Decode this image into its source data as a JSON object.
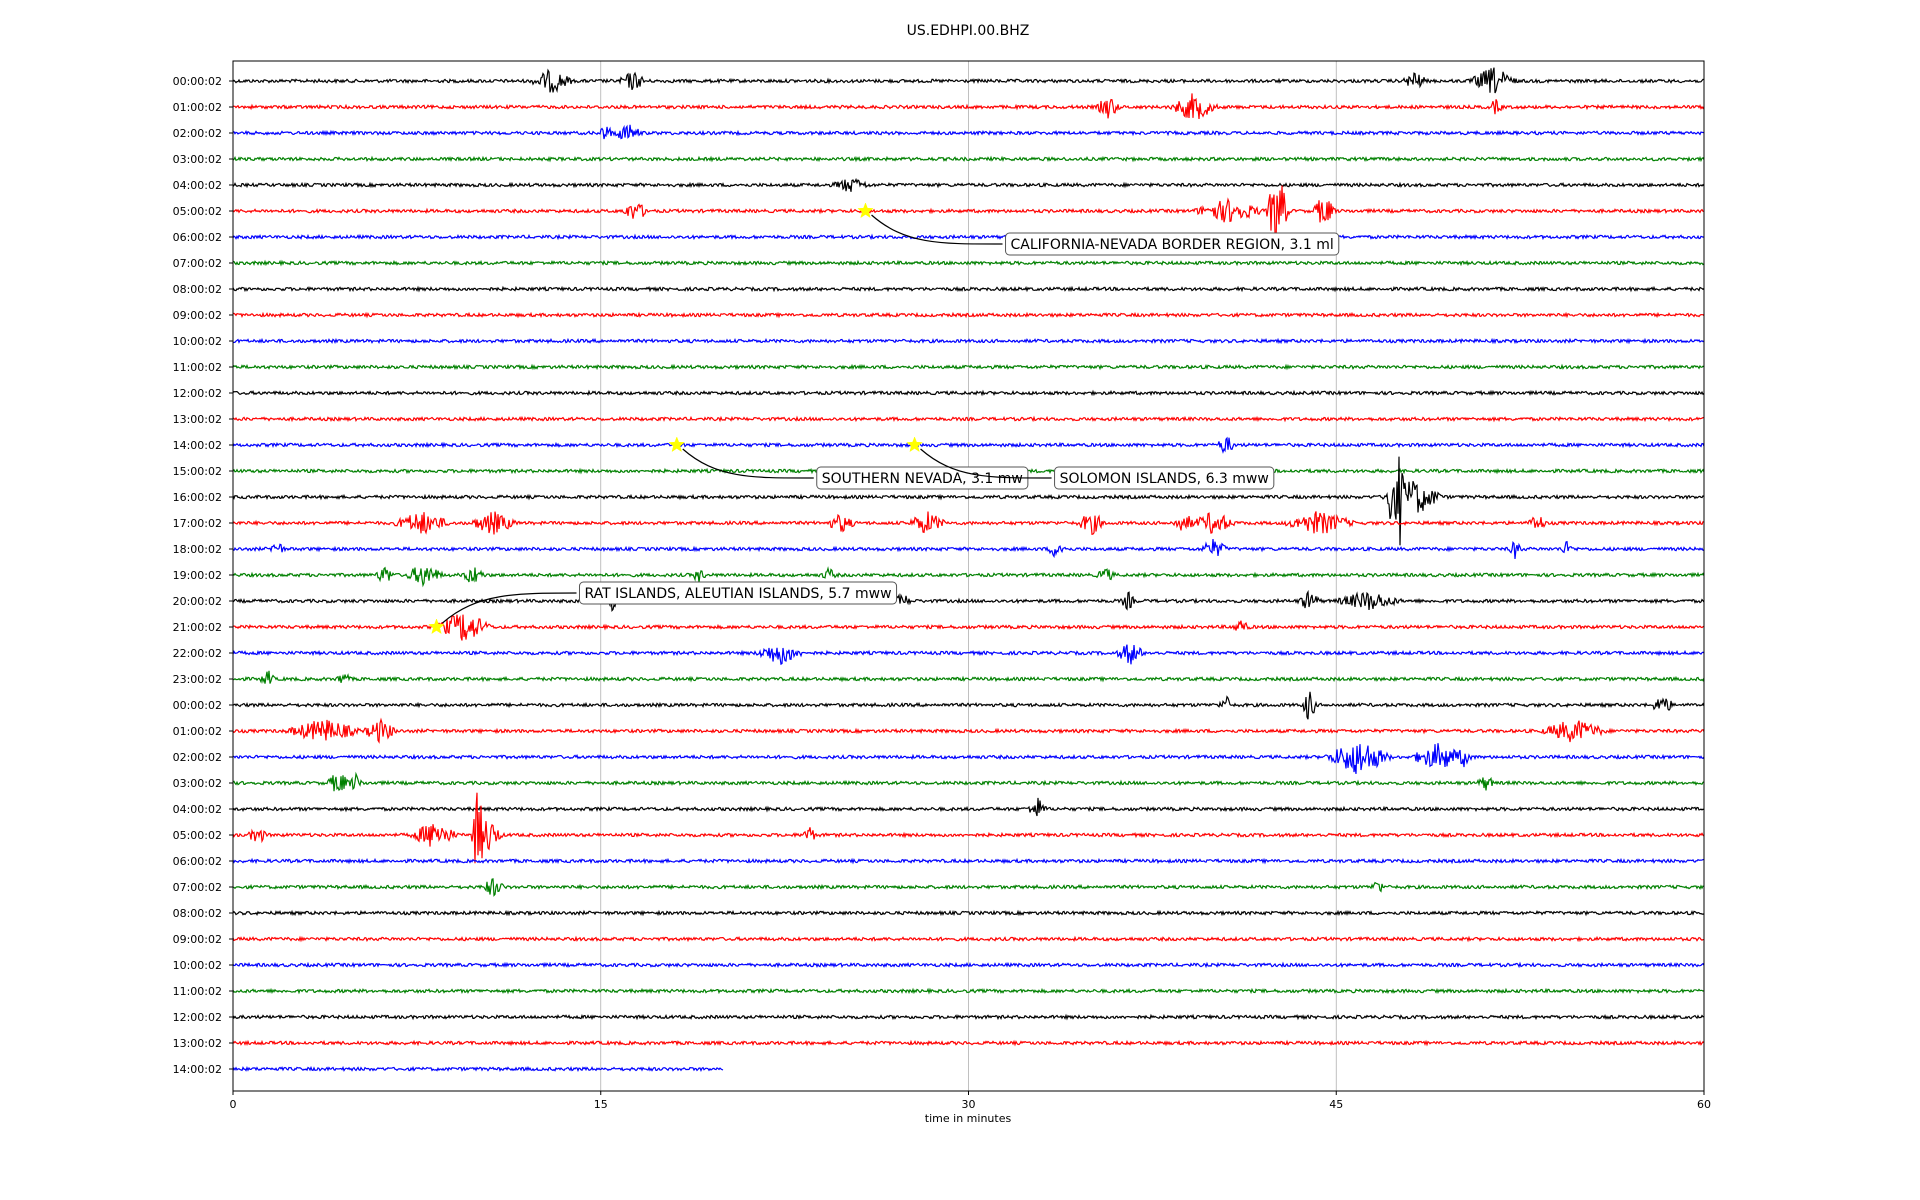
{
  "chart_data": {
    "type": "line",
    "title": "US.EDHPI.00.BHZ",
    "xlabel": "time in minutes",
    "ylabel": "",
    "xlim": [
      0,
      60
    ],
    "xticks": [
      0,
      15,
      30,
      45,
      60
    ],
    "grid": "vertical",
    "line_colors": [
      "#000000",
      "#ff0000",
      "#0000ff",
      "#008000"
    ],
    "marker_color": "#ffff00",
    "rows": [
      {
        "label": "00:00:02",
        "end_minute": 60,
        "bursts": [
          [
            13.0,
            0.9,
            0.5
          ],
          [
            16.3,
            0.6,
            0.4
          ],
          [
            48.2,
            0.5,
            0.4
          ],
          [
            51.4,
            1.0,
            0.6
          ]
        ]
      },
      {
        "label": "01:00:02",
        "end_minute": 60,
        "bursts": [
          [
            35.7,
            0.5,
            0.5
          ],
          [
            39.2,
            1.0,
            0.6
          ],
          [
            51.5,
            0.3,
            0.3
          ]
        ]
      },
      {
        "label": "02:00:02",
        "end_minute": 60,
        "bursts": [
          [
            15.2,
            0.4,
            0.3
          ],
          [
            16.1,
            0.6,
            0.4
          ]
        ]
      },
      {
        "label": "03:00:02",
        "end_minute": 60,
        "bursts": []
      },
      {
        "label": "04:00:02",
        "end_minute": 60,
        "bursts": [
          [
            25.2,
            0.8,
            0.3
          ]
        ]
      },
      {
        "label": "05:00:02",
        "end_minute": 60,
        "bursts": [
          [
            16.4,
            0.6,
            0.4
          ],
          [
            40.6,
            1.5,
            0.5
          ],
          [
            42.6,
            0.5,
            1.8
          ],
          [
            44.5,
            0.5,
            0.7
          ]
        ]
      },
      {
        "label": "06:00:02",
        "end_minute": 60,
        "bursts": []
      },
      {
        "label": "07:00:02",
        "end_minute": 60,
        "bursts": []
      },
      {
        "label": "08:00:02",
        "end_minute": 60,
        "bursts": []
      },
      {
        "label": "09:00:02",
        "end_minute": 60,
        "bursts": []
      },
      {
        "label": "10:00:02",
        "end_minute": 60,
        "bursts": []
      },
      {
        "label": "11:00:02",
        "end_minute": 60,
        "bursts": []
      },
      {
        "label": "12:00:02",
        "end_minute": 60,
        "bursts": []
      },
      {
        "label": "13:00:02",
        "end_minute": 60,
        "bursts": []
      },
      {
        "label": "14:00:02",
        "end_minute": 60,
        "bursts": [
          [
            40.5,
            0.4,
            0.4
          ]
        ]
      },
      {
        "label": "15:00:02",
        "end_minute": 60,
        "bursts": []
      },
      {
        "label": "16:00:02",
        "end_minute": 60,
        "bursts": [
          [
            47.2,
            0.3,
            1.5
          ],
          [
            47.6,
            0.3,
            2.2
          ],
          [
            48.2,
            1.2,
            0.8
          ]
        ]
      },
      {
        "label": "17:00:02",
        "end_minute": 60,
        "bursts": [
          [
            7.7,
            1.2,
            0.5
          ],
          [
            10.6,
            1.0,
            0.5
          ],
          [
            24.8,
            0.6,
            0.4
          ],
          [
            28.3,
            0.8,
            0.5
          ],
          [
            35.0,
            0.6,
            0.5
          ],
          [
            38.8,
            0.5,
            0.4
          ],
          [
            40.0,
            0.9,
            0.5
          ],
          [
            44.3,
            1.5,
            0.5
          ],
          [
            53.2,
            0.4,
            0.4
          ]
        ]
      },
      {
        "label": "18:00:02",
        "end_minute": 60,
        "bursts": [
          [
            1.8,
            0.3,
            0.4
          ],
          [
            33.6,
            0.4,
            0.4
          ],
          [
            40.0,
            0.6,
            0.4
          ],
          [
            52.3,
            0.3,
            0.4
          ],
          [
            54.4,
            0.3,
            0.3
          ]
        ]
      },
      {
        "label": "19:00:02",
        "end_minute": 60,
        "bursts": [
          [
            6.2,
            0.4,
            0.4
          ],
          [
            7.8,
            0.8,
            0.5
          ],
          [
            9.8,
            0.5,
            0.4
          ],
          [
            19.0,
            0.3,
            0.3
          ],
          [
            24.3,
            0.3,
            0.3
          ],
          [
            35.6,
            0.4,
            0.3
          ]
        ]
      },
      {
        "label": "20:00:02",
        "end_minute": 60,
        "bursts": [
          [
            15.4,
            0.3,
            0.5
          ],
          [
            27.3,
            0.4,
            0.3
          ],
          [
            36.5,
            0.3,
            0.4
          ],
          [
            43.9,
            0.5,
            0.4
          ],
          [
            46.3,
            1.4,
            0.4
          ]
        ]
      },
      {
        "label": "21:00:02",
        "end_minute": 60,
        "bursts": [
          [
            9.4,
            1.2,
            0.7
          ],
          [
            41.1,
            0.4,
            0.3
          ]
        ]
      },
      {
        "label": "22:00:02",
        "end_minute": 60,
        "bursts": [
          [
            22.3,
            1.0,
            0.5
          ],
          [
            36.6,
            0.6,
            0.5
          ]
        ]
      },
      {
        "label": "23:00:02",
        "end_minute": 60,
        "bursts": [
          [
            1.4,
            0.3,
            0.4
          ],
          [
            4.5,
            0.3,
            0.3
          ]
        ]
      },
      {
        "label": "00:00:02",
        "end_minute": 60,
        "bursts": [
          [
            40.5,
            0.3,
            0.4
          ],
          [
            43.9,
            0.3,
            0.8
          ],
          [
            58.3,
            0.5,
            0.4
          ]
        ]
      },
      {
        "label": "01:00:02",
        "end_minute": 60,
        "bursts": [
          [
            3.7,
            1.6,
            0.5
          ],
          [
            6.0,
            0.7,
            0.5
          ],
          [
            54.7,
            1.4,
            0.5
          ]
        ]
      },
      {
        "label": "02:00:02",
        "end_minute": 60,
        "bursts": [
          [
            45.9,
            1.4,
            0.8
          ],
          [
            49.2,
            1.2,
            0.6
          ],
          [
            50.2,
            0.4,
            0.4
          ]
        ]
      },
      {
        "label": "03:00:02",
        "end_minute": 60,
        "bursts": [
          [
            4.3,
            0.5,
            0.5
          ],
          [
            5.0,
            0.3,
            0.4
          ],
          [
            51.1,
            0.4,
            0.3
          ]
        ]
      },
      {
        "label": "04:00:02",
        "end_minute": 60,
        "bursts": [
          [
            32.8,
            0.4,
            0.5
          ]
        ]
      },
      {
        "label": "05:00:02",
        "end_minute": 60,
        "bursts": [
          [
            1.0,
            0.4,
            0.4
          ],
          [
            8.2,
            1.0,
            0.6
          ],
          [
            10.0,
            0.3,
            2.2
          ],
          [
            10.4,
            0.6,
            0.8
          ],
          [
            23.5,
            0.3,
            0.4
          ]
        ]
      },
      {
        "label": "06:00:02",
        "end_minute": 60,
        "bursts": []
      },
      {
        "label": "07:00:02",
        "end_minute": 60,
        "bursts": [
          [
            10.6,
            0.5,
            0.4
          ],
          [
            46.7,
            0.3,
            0.3
          ]
        ]
      },
      {
        "label": "08:00:02",
        "end_minute": 60,
        "bursts": []
      },
      {
        "label": "09:00:02",
        "end_minute": 60,
        "bursts": []
      },
      {
        "label": "10:00:02",
        "end_minute": 60,
        "bursts": []
      },
      {
        "label": "11:00:02",
        "end_minute": 60,
        "bursts": []
      },
      {
        "label": "12:00:02",
        "end_minute": 60,
        "bursts": []
      },
      {
        "label": "13:00:02",
        "end_minute": 60,
        "bursts": []
      },
      {
        "label": "14:00:02",
        "end_minute": 20,
        "bursts": []
      }
    ],
    "events": [
      {
        "row": 5,
        "minute": 25.8,
        "label": "CALIFORNIA-NEVADA BORDER REGION, 3.1 ml",
        "label_pos": "below-right"
      },
      {
        "row": 14,
        "minute": 18.1,
        "label": "SOUTHERN NEVADA, 3.1 mw",
        "label_pos": "below-right"
      },
      {
        "row": 14,
        "minute": 27.8,
        "label": "SOLOMON ISLANDS, 6.3 mww",
        "label_pos": "below-right"
      },
      {
        "row": 21,
        "minute": 8.3,
        "label": "RAT ISLANDS, ALEUTIAN ISLANDS, 5.7 mww",
        "label_pos": "above-right"
      }
    ]
  }
}
